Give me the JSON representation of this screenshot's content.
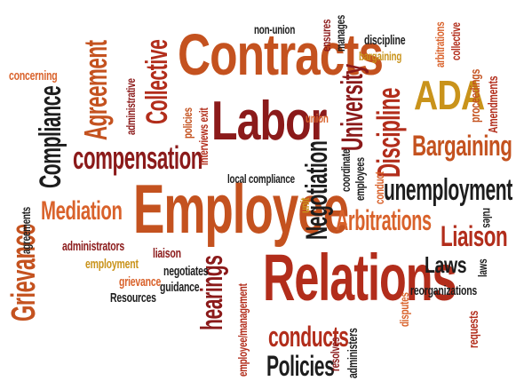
{
  "colors": {
    "dark_red": "#8b1a1a",
    "red": "#b22d1b",
    "orange": "#d9622b",
    "gold": "#c9931b",
    "near_black": "#1d1d1d"
  },
  "words": [
    {
      "id": "contracts",
      "text": "Contracts",
      "color": "#c4521f"
    },
    {
      "id": "labor",
      "text": "Labor",
      "color": "#8b1a1a"
    },
    {
      "id": "employee",
      "text": "Employee",
      "color": "#c4521f"
    },
    {
      "id": "relations",
      "text": "Relations",
      "color": "#b22d1b"
    },
    {
      "id": "compensation",
      "text": "compensation",
      "color": "#8b1a1a"
    },
    {
      "id": "collective-big",
      "text": "Collective",
      "color": "#b22d1b"
    },
    {
      "id": "agreement",
      "text": "Agreement",
      "color": "#c4521f"
    },
    {
      "id": "mediation",
      "text": "Mediation",
      "color": "#1d1d1d"
    },
    {
      "id": "compliance-big",
      "text": "Compliance",
      "color": "#d9622b"
    },
    {
      "id": "grievance-big",
      "text": "Grievance",
      "color": "#c4521f"
    },
    {
      "id": "ada",
      "text": "ADA",
      "color": "#c9931b"
    },
    {
      "id": "bargaining-big",
      "text": "Bargaining",
      "color": "#c4521f"
    },
    {
      "id": "unemployment",
      "text": "unemployment",
      "color": "#1d1d1d"
    },
    {
      "id": "arbitrations-big",
      "text": "Arbitrations",
      "color": "#d9622b"
    },
    {
      "id": "liaison-big",
      "text": "Liaison",
      "color": "#b22d1b"
    },
    {
      "id": "laws",
      "text": "Laws",
      "color": "#1d1d1d"
    },
    {
      "id": "university",
      "text": "University",
      "color": "#8b1a1a"
    },
    {
      "id": "discipline-big",
      "text": "Discipline",
      "color": "#b22d1b"
    },
    {
      "id": "negotiation",
      "text": "Negotiation",
      "color": "#1d1d1d"
    },
    {
      "id": "conducts-big",
      "text": "conducts",
      "color": "#b22d1b"
    },
    {
      "id": "policies-big",
      "text": "Policies",
      "color": "#1d1d1d"
    },
    {
      "id": "hearings",
      "text": "hearings",
      "color": "#8b1a1a"
    },
    {
      "id": "non-union",
      "text": "non-union",
      "color": "#1d1d1d"
    },
    {
      "id": "ensures",
      "text": "ensures",
      "color": "#8b1a1a"
    },
    {
      "id": "manages",
      "text": "manages",
      "color": "#1d1d1d"
    },
    {
      "id": "discipline-small",
      "text": "discipline",
      "color": "#1d1d1d"
    },
    {
      "id": "bargaining-small",
      "text": "bargaining",
      "color": "#c9931b"
    },
    {
      "id": "arbitrations-small",
      "text": "arbitrations",
      "color": "#d9622b"
    },
    {
      "id": "collective-small",
      "text": "collective",
      "color": "#b22d1b"
    },
    {
      "id": "proceedings",
      "text": "proceedings",
      "color": "#c4521f"
    },
    {
      "id": "amendments",
      "text": "Amendments",
      "color": "#b22d1b"
    },
    {
      "id": "concerning",
      "text": "concerning",
      "color": "#d9622b"
    },
    {
      "id": "administrative",
      "text": "administrative",
      "color": "#8b1a1a"
    },
    {
      "id": "interviews-exit",
      "text": "interviews exit",
      "color": "#b22d1b"
    },
    {
      "id": "policies-small",
      "text": "policies",
      "color": "#c4521f"
    },
    {
      "id": "union",
      "text": "union",
      "color": "#d9622b"
    },
    {
      "id": "local-compliance",
      "text": "local compliance",
      "color": "#1d1d1d"
    },
    {
      "id": "coordinate",
      "text": "coordinate",
      "color": "#1d1d1d"
    },
    {
      "id": "employees",
      "text": "employees",
      "color": "#1d1d1d"
    },
    {
      "id": "conduct",
      "text": "conduct",
      "color": "#d9622b"
    },
    {
      "id": "unit",
      "text": "unit",
      "color": "#c9931b"
    },
    {
      "id": "rules",
      "text": "rules",
      "color": "#1d1d1d"
    },
    {
      "id": "agreements",
      "text": "agreements",
      "color": "#1d1d1d"
    },
    {
      "id": "administrators",
      "text": "administrators",
      "color": "#8b1a1a"
    },
    {
      "id": "employment",
      "text": "employment",
      "color": "#c9931b"
    },
    {
      "id": "liaison-small",
      "text": "liaison",
      "color": "#8b1a1a"
    },
    {
      "id": "negotiates",
      "text": "negotiates",
      "color": "#1d1d1d"
    },
    {
      "id": "grievance-small",
      "text": "grievance",
      "color": "#d9622b"
    },
    {
      "id": "resources",
      "text": "Resources",
      "color": "#1d1d1d"
    },
    {
      "id": "guidance",
      "text": "guidance",
      "color": "#1d1d1d"
    },
    {
      "id": "employee-management",
      "text": "employee/management",
      "color": "#b22d1b"
    },
    {
      "id": "resolves",
      "text": "resolves",
      "color": "#8b1a1a"
    },
    {
      "id": "administers",
      "text": "administers",
      "color": "#1d1d1d"
    },
    {
      "id": "disputes",
      "text": "disputes",
      "color": "#d9622b"
    },
    {
      "id": "reorganizations",
      "text": "reorganizations",
      "color": "#1d1d1d"
    },
    {
      "id": "requests",
      "text": "requests",
      "color": "#b22d1b"
    },
    {
      "id": "laws-small",
      "text": "laws",
      "color": "#1d1d1d"
    }
  ]
}
